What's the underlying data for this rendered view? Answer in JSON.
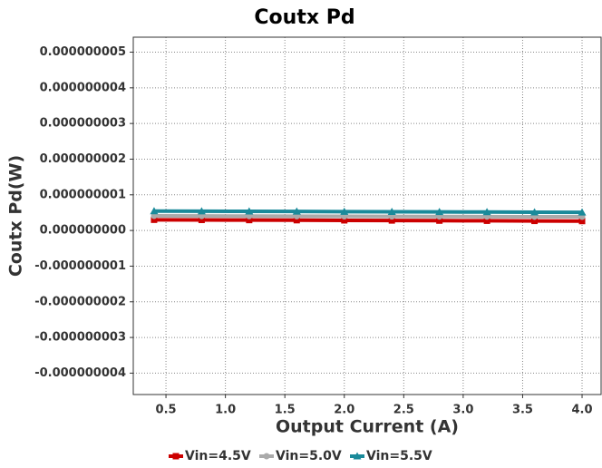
{
  "chart_data": {
    "type": "line",
    "title": "Coutx Pd",
    "x_label": "Output Current (A)",
    "y_label": "Coutx Pd(W)",
    "x": [
      0.4,
      0.8,
      1.2,
      1.6,
      2.0,
      2.4,
      2.8,
      3.2,
      3.6,
      4.0
    ],
    "series": [
      {
        "name": "Vin=4.5V",
        "color": "#cc0000",
        "marker": "square",
        "values": [
          3e-10,
          2.96e-10,
          2.92e-10,
          2.88e-10,
          2.84e-10,
          2.8e-10,
          2.76e-10,
          2.72e-10,
          2.68e-10,
          2.64e-10
        ]
      },
      {
        "name": "Vin=5.0V",
        "color": "#aaaaaa",
        "marker": "circle",
        "values": [
          4.1e-10,
          4.07e-10,
          4.04e-10,
          4.01e-10,
          3.98e-10,
          3.95e-10,
          3.92e-10,
          3.89e-10,
          3.86e-10,
          3.83e-10
        ]
      },
      {
        "name": "Vin=5.5V",
        "color": "#1a8a9a",
        "marker": "triangle",
        "values": [
          5.45e-10,
          5.41e-10,
          5.37e-10,
          5.33e-10,
          5.29e-10,
          5.25e-10,
          5.21e-10,
          5.17e-10,
          5.13e-10,
          5.09e-10
        ]
      }
    ],
    "xlim": [
      0.225,
      4.16
    ],
    "ylim": [
      -4.6e-09,
      5.42e-09
    ],
    "xticks": [
      0.5,
      {
        "value": 1,
        "label": "1.0"
      },
      1.5,
      {
        "value": 2,
        "label": "2.0"
      },
      2.5,
      {
        "value": 3,
        "label": "3.0"
      },
      3.5,
      {
        "value": 4,
        "label": "4.0"
      }
    ],
    "yticks": [
      {
        "value": 5e-09,
        "label": "0.000000005"
      },
      {
        "value": 4e-09,
        "label": "0.000000004"
      },
      {
        "value": 3e-09,
        "label": "0.000000003"
      },
      {
        "value": 2e-09,
        "label": "0.000000002"
      },
      {
        "value": 1e-09,
        "label": "0.000000001"
      },
      {
        "value": 0,
        "label": "0.000000000"
      },
      {
        "value": -1e-09,
        "label": "-0.000000001"
      },
      {
        "value": -2e-09,
        "label": "-0.000000002"
      },
      {
        "value": -3e-09,
        "label": "-0.000000003"
      },
      {
        "value": -4e-09,
        "label": "-0.000000004"
      }
    ],
    "grid": true,
    "legend": "bottom"
  }
}
